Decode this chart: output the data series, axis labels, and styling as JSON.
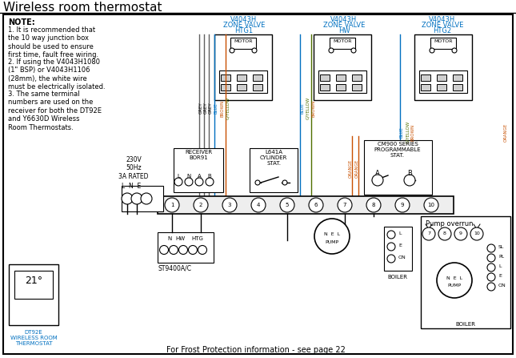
{
  "title": "Wireless room thermostat",
  "bg_color": "#ffffff",
  "blue": "#0070c0",
  "orange": "#c85000",
  "green": "#507000",
  "grey": "#606060",
  "note_title": "NOTE:",
  "note1": "1. It is recommended that\nthe 10 way junction box\nshould be used to ensure\nfirst time, fault free wiring.",
  "note2": "2. If using the V4043H1080\n(1\" BSP) or V4043H1106\n(28mm), the white wire\nmust be electrically isolated.",
  "note3": "3. The same terminal\nnumbers are used on the\nreceiver for both the DT92E\nand Y6630D Wireless\nRoom Thermostats.",
  "footer": "For Frost Protection information - see page 22",
  "voltage": "230V\n50Hz\n3A RATED",
  "boiler": "BOILER",
  "pump_overrun": "Pump overrun",
  "st9400": "ST9400A/C",
  "dt92e": "DT92E\nWIRELESS ROOM\nTHERMOSTAT"
}
